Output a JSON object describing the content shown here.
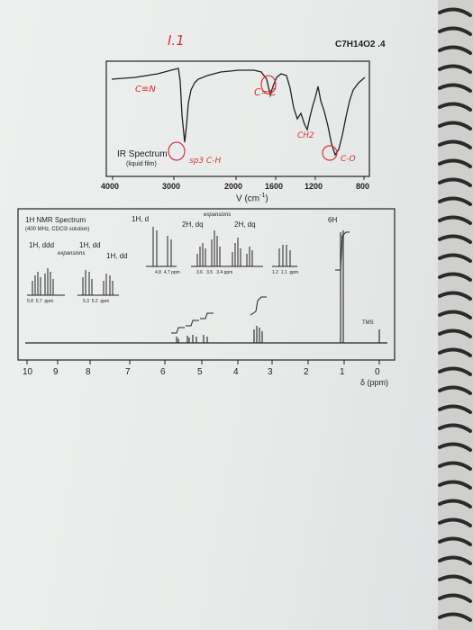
{
  "handwriting": {
    "problem_number": "I.1",
    "formula": "C7H14O2 .4",
    "ir_nitrile_note": "C≡N",
    "ir_ch_note": "sp3 C-H",
    "ir_alkene_note": "C=C",
    "ir_ch2_note": "CH2",
    "ir_co_note": "C-O"
  },
  "ir": {
    "title": "IR Spectrum",
    "subtitle": "(liquid film)",
    "ticks": [
      "4000",
      "3000",
      "2000",
      "1600",
      "1200",
      "800"
    ],
    "axis_label": "V  (cm",
    "axis_exponent": "-1",
    "axis_close": ")"
  },
  "nmr": {
    "title": "1H NMR Spectrum",
    "subtitle": "(400 MHz, CDCl3 solution)",
    "expansions_label": "expansions",
    "labels": {
      "ddd": "1H, ddd",
      "dd1": "1H, dd",
      "dd2": "1H, dd",
      "d": "1H, d",
      "dq1": "2H, dq",
      "dq2": "2H, dq",
      "h6": "6H",
      "tms": "TMS"
    },
    "inset_ticks": {
      "a": [
        "5.8",
        "5.7",
        "ppm"
      ],
      "b": [
        "5.3",
        "5.2",
        "ppm"
      ],
      "c": [
        "4.8",
        "4.7 ppm"
      ],
      "d": [
        "3.6",
        "3.5",
        "3.4 ppm"
      ],
      "e": [
        "1.2",
        "1.1",
        "ppm"
      ]
    },
    "axis_ticks": [
      "10",
      "9",
      "8",
      "7",
      "6",
      "5",
      "4",
      "3",
      "2",
      "1",
      "0"
    ],
    "axis_label": "δ (ppm)"
  }
}
